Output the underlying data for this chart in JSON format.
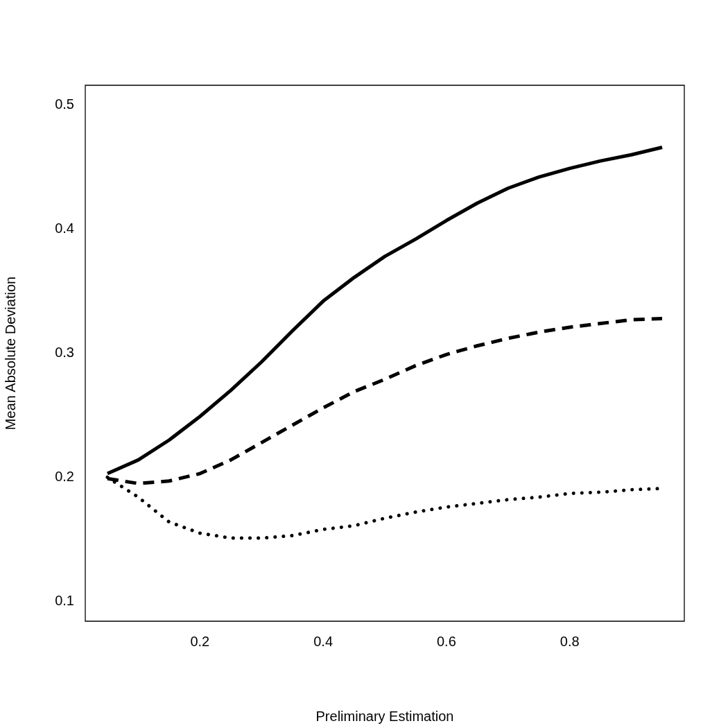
{
  "chart_data": {
    "type": "line",
    "xlabel": "Preliminary Estimation",
    "ylabel": "Mean Absolute Deviation",
    "x": [
      0.05,
      0.1,
      0.15,
      0.2,
      0.25,
      0.3,
      0.35,
      0.4,
      0.45,
      0.5,
      0.55,
      0.6,
      0.65,
      0.7,
      0.75,
      0.8,
      0.85,
      0.9,
      0.95
    ],
    "xlim": [
      0.014,
      0.986
    ],
    "xticks": [
      0.2,
      0.4,
      0.6,
      0.8
    ],
    "ylim": [
      0.084,
      0.516
    ],
    "yticks": [
      0.1,
      0.2,
      0.3,
      0.4,
      0.5
    ],
    "grid": false,
    "legend": false,
    "marker": "none",
    "series": [
      {
        "color": "#000000",
        "line_style": "solid",
        "values": [
          0.203,
          0.214,
          0.23,
          0.249,
          0.27,
          0.293,
          0.318,
          0.342,
          0.361,
          0.378,
          0.392,
          0.407,
          0.421,
          0.433,
          0.442,
          0.449,
          0.455,
          0.46,
          0.466
        ]
      },
      {
        "color": "#000000",
        "line_style": "dashed",
        "values": [
          0.199,
          0.195,
          0.197,
          0.203,
          0.214,
          0.228,
          0.242,
          0.256,
          0.269,
          0.279,
          0.29,
          0.299,
          0.306,
          0.312,
          0.317,
          0.321,
          0.324,
          0.327,
          0.328
        ]
      },
      {
        "color": "#000000",
        "line_style": "dotted",
        "values": [
          0.2,
          0.184,
          0.164,
          0.155,
          0.151,
          0.151,
          0.153,
          0.158,
          0.161,
          0.167,
          0.172,
          0.176,
          0.179,
          0.182,
          0.184,
          0.187,
          0.188,
          0.19,
          0.191
        ]
      }
    ]
  }
}
